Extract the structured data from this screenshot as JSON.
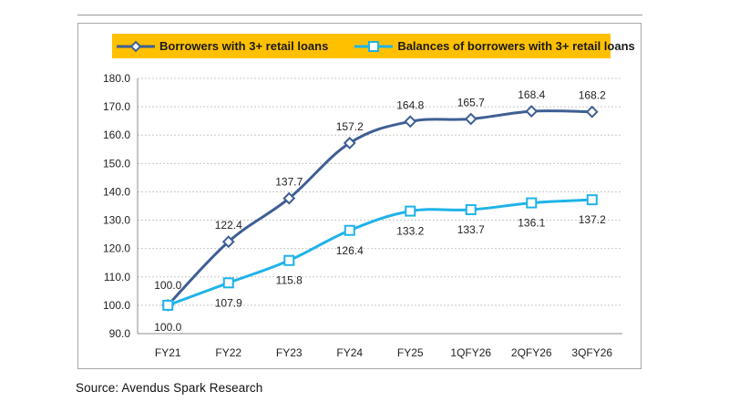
{
  "source_note": "Source: Avendus Spark Research",
  "colors": {
    "series1": "#3f5f94",
    "series2": "#1fb3e8",
    "legend_bg": "#ffc000",
    "grid": "#c8c8c8"
  },
  "chart_data": {
    "type": "line",
    "title": "",
    "xlabel": "",
    "ylabel": "",
    "categories": [
      "FY21",
      "FY22",
      "FY23",
      "FY24",
      "FY25",
      "1QFY26",
      "2QFY26",
      "3QFY26"
    ],
    "ylim": [
      90.0,
      180.0
    ],
    "yticks": [
      "90.0",
      "100.0",
      "110.0",
      "120.0",
      "130.0",
      "140.0",
      "150.0",
      "160.0",
      "170.0",
      "180.0"
    ],
    "grid": true,
    "legend_position": "top",
    "series": [
      {
        "name": "Borrowers with 3+ retail loans",
        "marker": "diamond",
        "values": [
          100.0,
          122.4,
          137.7,
          157.2,
          164.8,
          165.7,
          168.4,
          168.2
        ],
        "labels": [
          "100.0",
          "122.4",
          "137.7",
          "157.2",
          "164.8",
          "165.7",
          "168.4",
          "168.2"
        ]
      },
      {
        "name": "Balances of borrowers with 3+ retail loans",
        "marker": "square",
        "values": [
          100.0,
          107.9,
          115.8,
          126.4,
          133.2,
          133.7,
          136.1,
          137.2
        ],
        "labels": [
          "100.0",
          "107.9",
          "115.8",
          "126.4",
          "133.2",
          "133.7",
          "136.1",
          "137.2"
        ]
      }
    ]
  }
}
